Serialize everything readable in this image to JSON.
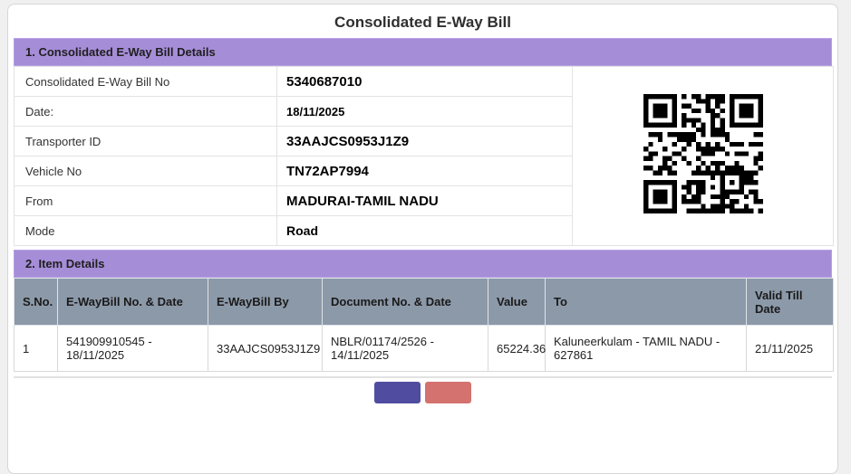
{
  "page": {
    "title": "Consolidated E-Way Bill"
  },
  "details": {
    "heading": "1. Consolidated E-Way Bill Details",
    "rows": [
      {
        "label": "Consolidated E-Way Bill No",
        "value": "5340687010"
      },
      {
        "label": "Date:",
        "value": "18/11/2025"
      },
      {
        "label": "Transporter ID",
        "value": "33AAJCS0953J1Z9"
      },
      {
        "label": "Vehicle No",
        "value": "TN72AP7994"
      },
      {
        "label": "From",
        "value": "MADURAI-TAMIL NADU"
      },
      {
        "label": "Mode",
        "value": "Road"
      }
    ],
    "qr": "qr-code"
  },
  "items": {
    "heading": "2. Item Details",
    "columns": [
      "S.No.",
      "E-WayBill No. & Date",
      "E-WayBill By",
      "Document No. & Date",
      "Value",
      "To",
      "Valid Till Date"
    ],
    "rows": [
      [
        "1",
        "541909910545 - 18/11/2025",
        "33AAJCS0953J1Z9",
        "NBLR/01174/2526 - 14/11/2025",
        "65224.36",
        "Kaluneerkulam - TAMIL NADU - 627861",
        "21/11/2025"
      ]
    ]
  },
  "footer": {
    "buttons": [
      {
        "name": "primary-action",
        "color": "#504DA1"
      },
      {
        "name": "secondary-action",
        "color": "#D3726E"
      }
    ]
  },
  "colors": {
    "section_header_bg": "#A68DD8",
    "table_header_bg": "#8C99A9",
    "primary_button": "#504DA1",
    "secondary_button": "#D3726E",
    "page_bg": "#F0F0F0"
  }
}
